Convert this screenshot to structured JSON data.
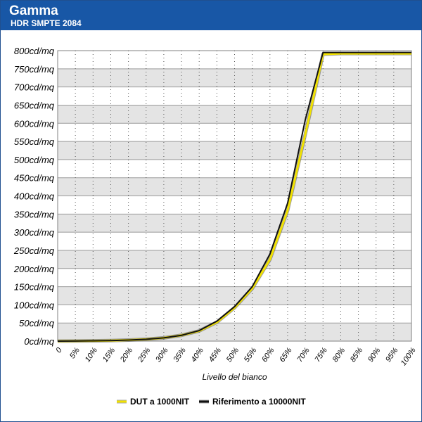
{
  "header": {
    "title": "Gamma",
    "subtitle": "HDR SMPTE 2084"
  },
  "chart_data": {
    "type": "line",
    "title": "Gamma",
    "subtitle": "HDR SMPTE 2084",
    "xlabel": "Livello del bianco",
    "ylabel": "",
    "x": [
      0,
      5,
      10,
      15,
      20,
      25,
      30,
      35,
      40,
      45,
      50,
      55,
      60,
      65,
      70,
      75,
      80,
      85,
      90,
      95,
      100
    ],
    "x_tick_labels": [
      "0",
      "5%",
      "10%",
      "15%",
      "20%",
      "25%",
      "30%",
      "35%",
      "40%",
      "45%",
      "50%",
      "55%",
      "60%",
      "65%",
      "70%",
      "75%",
      "80%",
      "85%",
      "90%",
      "95%",
      "100%"
    ],
    "y_ticks": [
      0,
      50,
      100,
      150,
      200,
      250,
      300,
      350,
      400,
      450,
      500,
      550,
      600,
      650,
      700,
      750,
      800
    ],
    "y_tick_labels": [
      "0cd/mq",
      "50cd/mq",
      "100cd/mq",
      "150cd/mq",
      "200cd/mq",
      "250cd/mq",
      "300cd/mq",
      "350cd/mq",
      "400cd/mq",
      "450cd/mq",
      "500cd/mq",
      "550cd/mq",
      "600cd/mq",
      "650cd/mq",
      "700cd/mq",
      "750cd/mq",
      "800cd/mq"
    ],
    "ylim": [
      0,
      800
    ],
    "xlim": [
      0,
      100
    ],
    "grid": true,
    "legend_position": "bottom",
    "series": [
      {
        "name": "DUT a 1000NIT",
        "color": "#f2e200",
        "values": [
          0,
          0.3,
          0.8,
          1.5,
          2.8,
          5,
          9,
          16,
          28,
          52,
          92,
          145,
          225,
          360,
          570,
          790,
          792,
          792,
          792,
          792,
          792
        ]
      },
      {
        "name": "Riferimento a 10000NIT",
        "color": "#111111",
        "values": [
          0,
          0.3,
          0.8,
          1.5,
          2.8,
          5,
          9,
          16,
          29,
          55,
          95,
          150,
          240,
          380,
          610,
          795,
          795,
          795,
          795,
          795,
          795
        ]
      }
    ]
  }
}
